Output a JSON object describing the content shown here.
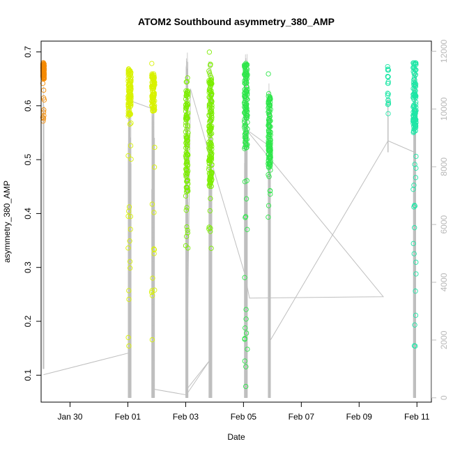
{
  "chart_data": {
    "type": "scatter",
    "title": "ATOM2 Southbound asymmetry_380_AMP",
    "xlabel": "Date",
    "ylabel": "asymmetry_380_AMP",
    "x_ticks": [
      "Jan 30",
      "Feb 01",
      "Feb 03",
      "Feb 05",
      "Feb 07",
      "Feb 09",
      "Feb 11"
    ],
    "x_range_days": [
      "2021-01-29T00:00",
      "2021-02-11T12:00"
    ],
    "ylim": [
      0.05,
      0.72
    ],
    "yticks": [
      0.1,
      0.2,
      0.3,
      0.4,
      0.5,
      0.6,
      0.7
    ],
    "y2lim": [
      -150,
      12350
    ],
    "y2ticks": [
      0,
      2000,
      4000,
      6000,
      8000,
      10000,
      12000
    ],
    "y2_color": "#bdbdbd",
    "marker": "open-circle",
    "colors": {
      "series_1": "#f58a00",
      "series_2": "#d8f200",
      "series_3": "#7cee00",
      "series_4": "#2ee64a",
      "series_5": "#1ee6a6",
      "gray_line": "#bfbfbf"
    },
    "clusters": [
      {
        "center": "2021-01-29T02:00",
        "spread_hours": 1.2,
        "y_range": [
          0.57,
          0.68
        ],
        "dense_range": [
          0.65,
          0.68
        ],
        "color": "#f58a00",
        "count": 90
      },
      {
        "center": "2021-02-01T01:30",
        "spread_hours": 2.5,
        "y_range": [
          0.15,
          0.71
        ],
        "dense_range": [
          0.58,
          0.67
        ],
        "color": "#d8f200",
        "count": 120
      },
      {
        "center": "2021-02-01T21:00",
        "spread_hours": 2.5,
        "y_range": [
          0.06,
          0.69
        ],
        "dense_range": [
          0.59,
          0.66
        ],
        "color": "#d8f200",
        "count": 110
      },
      {
        "center": "2021-02-03T01:00",
        "spread_hours": 2.0,
        "y_range": [
          0.33,
          0.67
        ],
        "dense_range": [
          0.44,
          0.63
        ],
        "color": "#7cee00",
        "count": 120
      },
      {
        "center": "2021-02-03T20:30",
        "spread_hours": 2.5,
        "y_range": [
          0.33,
          0.71
        ],
        "dense_range": [
          0.45,
          0.65
        ],
        "color": "#7cee00",
        "count": 170
      },
      {
        "center": "2021-02-05T02:00",
        "spread_hours": 2.5,
        "y_range": [
          0.06,
          0.68
        ],
        "dense_range": [
          0.52,
          0.68
        ],
        "color": "#2ee64a",
        "count": 150
      },
      {
        "center": "2021-02-05T21:30",
        "spread_hours": 2.0,
        "y_range": [
          0.38,
          0.66
        ],
        "dense_range": [
          0.48,
          0.62
        ],
        "color": "#2ee64a",
        "count": 130
      },
      {
        "center": "2021-02-10T00:00",
        "spread_hours": 0.8,
        "y_range": [
          0.58,
          0.68
        ],
        "dense_range": [
          0.6,
          0.68
        ],
        "color": "#1ee6a6",
        "count": 20
      },
      {
        "center": "2021-02-10T22:00",
        "spread_hours": 2.5,
        "y_range": [
          0.12,
          0.68
        ],
        "dense_range": [
          0.55,
          0.68
        ],
        "color": "#1ee6a6",
        "count": 130
      }
    ],
    "gray_series": {
      "axis": "right",
      "points": [
        [
          "2021-01-29T02:00",
          800
        ],
        [
          "2021-02-01T00:30",
          1550
        ],
        [
          "2021-02-01T01:00",
          10300
        ],
        [
          "2021-02-01T21:00",
          10000
        ],
        [
          "2021-02-01T21:30",
          300
        ],
        [
          "2021-02-03T00:30",
          100
        ],
        [
          "2021-02-03T20:00",
          1300
        ],
        [
          "2021-02-03T01:00",
          300
        ],
        [
          "2021-02-03T04:00",
          10700
        ],
        [
          "2021-02-04T00:00",
          7800
        ],
        [
          "2021-02-05T01:00",
          4300
        ],
        [
          "2021-02-05T05:00",
          3450
        ],
        [
          "2021-02-09T20:00",
          3500
        ],
        [
          "2021-02-05T02:00",
          9300
        ],
        [
          "2021-02-05T22:00",
          8700
        ],
        [
          "2021-02-05T21:00",
          1900
        ],
        [
          "2021-02-10T00:00",
          8900
        ],
        [
          "2021-02-10T22:00",
          8500
        ]
      ],
      "spikes": [
        {
          "center": "2021-01-29T02:00",
          "width_hours": 1.0,
          "range": [
            1000,
            10800
          ],
          "count": 12
        },
        {
          "center": "2021-02-01T01:30",
          "width_hours": 2.5,
          "range": [
            0,
            10500
          ],
          "count": 40
        },
        {
          "center": "2021-02-01T21:00",
          "width_hours": 2.5,
          "range": [
            0,
            10400
          ],
          "count": 40
        },
        {
          "center": "2021-02-03T01:00",
          "width_hours": 2.0,
          "range": [
            0,
            12000
          ],
          "count": 40
        },
        {
          "center": "2021-02-03T20:30",
          "width_hours": 2.5,
          "range": [
            0,
            11700
          ],
          "count": 50
        },
        {
          "center": "2021-02-05T02:00",
          "width_hours": 2.5,
          "range": [
            0,
            12100
          ],
          "count": 45
        },
        {
          "center": "2021-02-05T21:30",
          "width_hours": 2.0,
          "range": [
            0,
            11000
          ],
          "count": 40
        },
        {
          "center": "2021-02-10T00:00",
          "width_hours": 0.5,
          "range": [
            8500,
            10500
          ],
          "count": 4
        },
        {
          "center": "2021-02-10T22:00",
          "width_hours": 2.0,
          "range": [
            0,
            11500
          ],
          "count": 45
        }
      ]
    },
    "grid": false,
    "legend": "none"
  }
}
